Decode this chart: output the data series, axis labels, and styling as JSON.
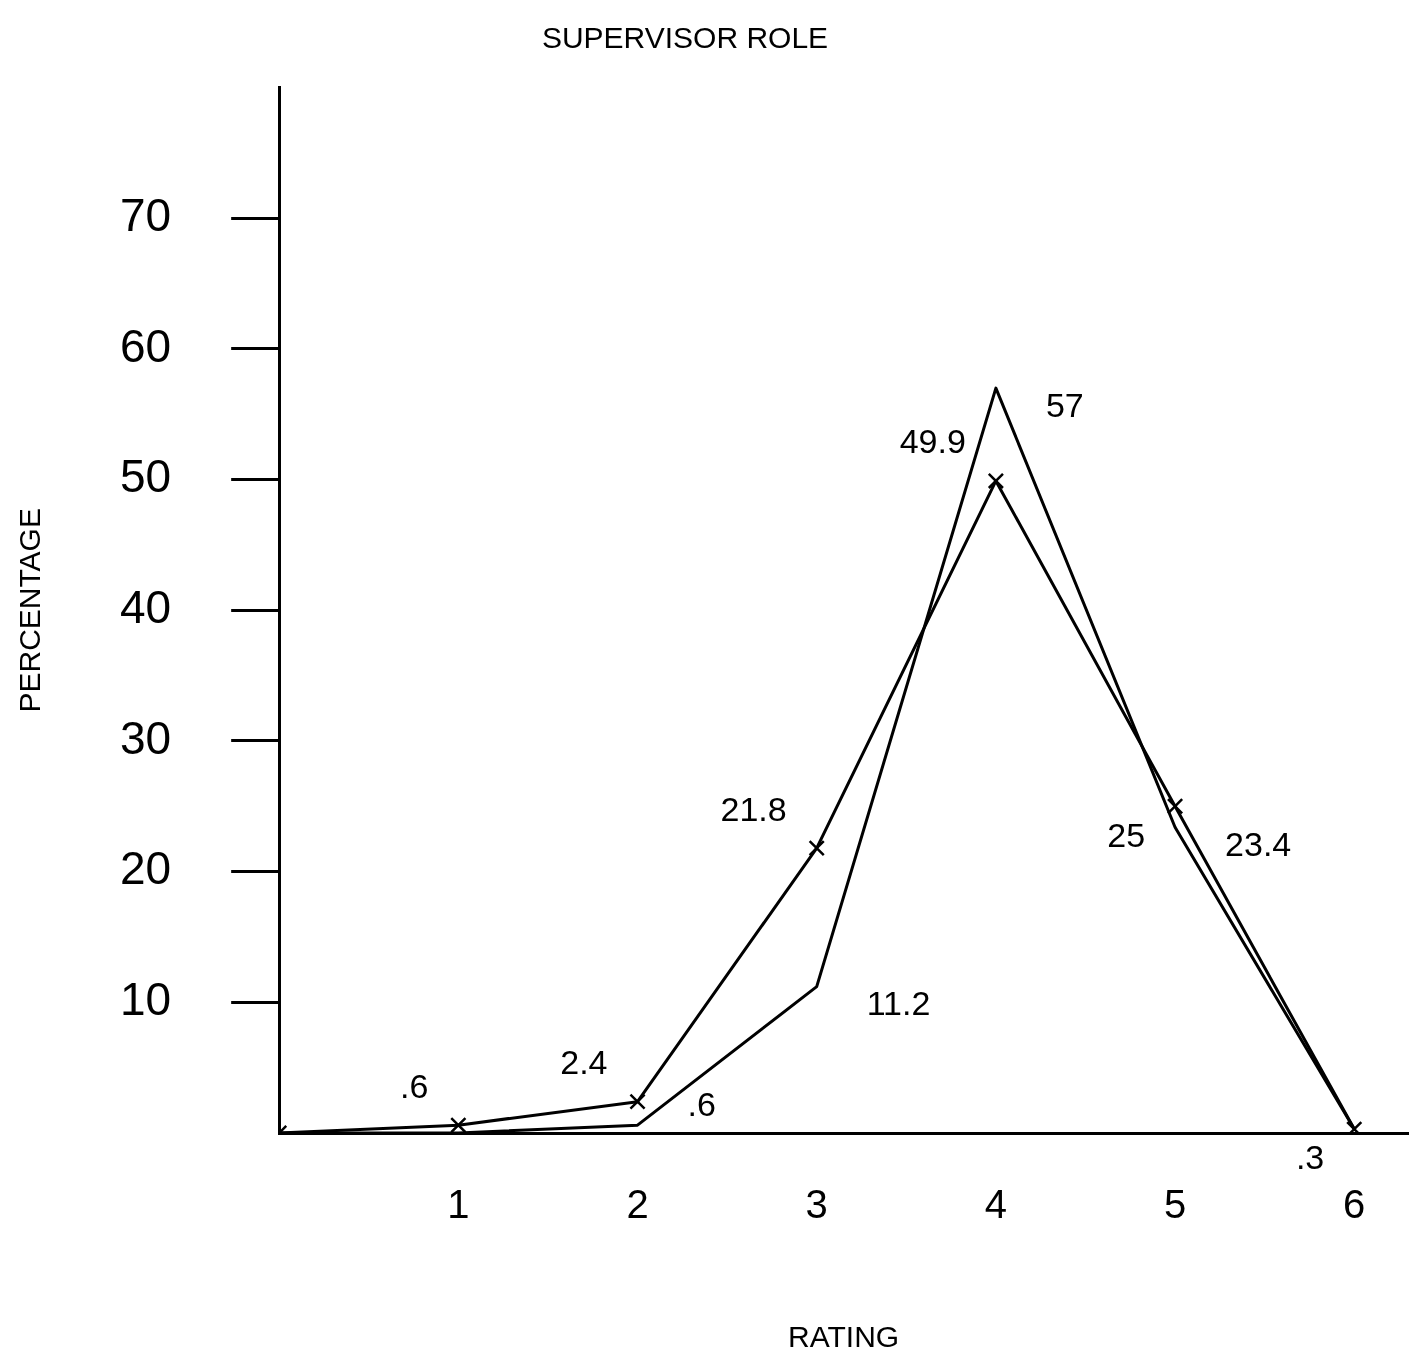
{
  "chart_data": {
    "type": "line",
    "title": "SUPERVISOR ROLE",
    "xlabel": "RATING",
    "ylabel": "PERCENTAGE",
    "x": [
      0,
      1,
      2,
      3,
      4,
      5,
      6
    ],
    "series": [
      {
        "color": "#000000",
        "marker": "none",
        "values": [
          0,
          0,
          0.6,
          11.2,
          57,
          23.4,
          0.3
        ],
        "value_labels": [
          null,
          null,
          ".6",
          "11.2",
          "57",
          "23.4",
          null
        ]
      },
      {
        "color": "#000000",
        "marker": "cross",
        "values": [
          0,
          0.6,
          2.4,
          21.8,
          49.9,
          25,
          0.3
        ],
        "value_labels": [
          null,
          ".6",
          "2.4",
          "21.8",
          "49.9",
          "25",
          ".3"
        ]
      }
    ],
    "xlim": [
      0,
      6.3
    ],
    "xticks": [
      1,
      2,
      3,
      4,
      5,
      6
    ],
    "ylim": [
      0,
      80
    ],
    "yticks": [
      10,
      20,
      30,
      40,
      50,
      60,
      70
    ],
    "grid": false,
    "legend": false,
    "line_style": "solid"
  }
}
